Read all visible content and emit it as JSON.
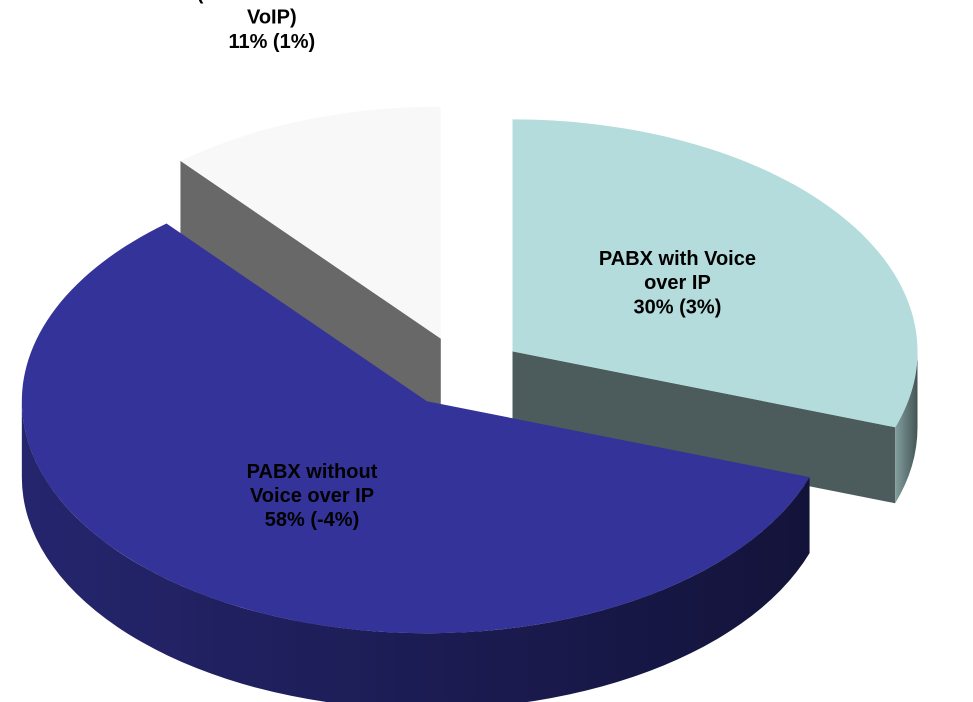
{
  "chart_data": {
    "type": "pie3d",
    "categories": [
      "PABX with Voice over IP",
      "PABX without Voice over IP",
      "PABX Hybrid (traditionell and VoIP)"
    ],
    "values": [
      30,
      58,
      11
    ],
    "value_labels": [
      "30% (3%)",
      "58% (-4%)",
      "11% (1%)"
    ],
    "colors": [
      "#b4dcdc",
      "#333399",
      "#f8f8f8"
    ],
    "label_position": [
      "inside",
      "inside",
      "outside"
    ]
  }
}
